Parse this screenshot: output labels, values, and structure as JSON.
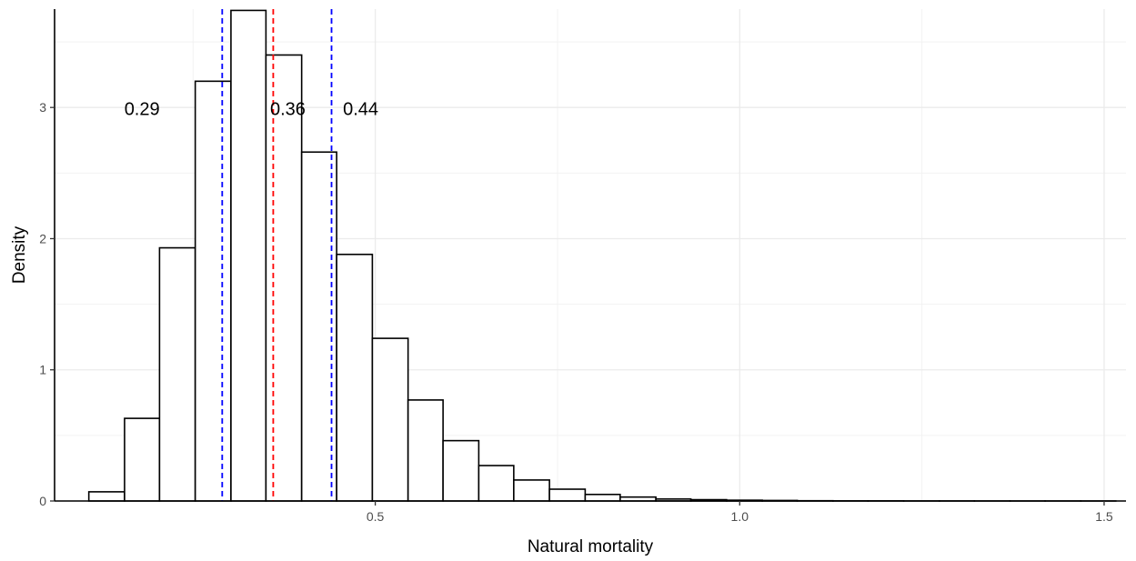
{
  "chart_data": {
    "type": "histogram",
    "xlabel": "Natural mortality",
    "ylabel": "Density",
    "xlim": [
      0.06,
      1.53
    ],
    "ylim": [
      0,
      3.75
    ],
    "xticks": [
      0.5,
      1.0,
      1.5
    ],
    "xtick_labels": [
      "0.5",
      "1.0",
      "1.5"
    ],
    "yticks": [
      0,
      1,
      2,
      3
    ],
    "ytick_labels": [
      "0",
      "1",
      "2",
      "3"
    ],
    "grid": true,
    "bin_width": 0.0486,
    "bins": [
      {
        "x0": 0.107,
        "x1": 0.156,
        "density": 0.07
      },
      {
        "x0": 0.156,
        "x1": 0.204,
        "density": 0.63
      },
      {
        "x0": 0.204,
        "x1": 0.253,
        "density": 1.93
      },
      {
        "x0": 0.253,
        "x1": 0.302,
        "density": 3.2
      },
      {
        "x0": 0.302,
        "x1": 0.35,
        "density": 3.74
      },
      {
        "x0": 0.35,
        "x1": 0.399,
        "density": 3.4
      },
      {
        "x0": 0.399,
        "x1": 0.447,
        "density": 2.66
      },
      {
        "x0": 0.447,
        "x1": 0.496,
        "density": 1.88
      },
      {
        "x0": 0.496,
        "x1": 0.545,
        "density": 1.24
      },
      {
        "x0": 0.545,
        "x1": 0.593,
        "density": 0.77
      },
      {
        "x0": 0.593,
        "x1": 0.642,
        "density": 0.46
      },
      {
        "x0": 0.642,
        "x1": 0.69,
        "density": 0.27
      },
      {
        "x0": 0.69,
        "x1": 0.739,
        "density": 0.16
      },
      {
        "x0": 0.739,
        "x1": 0.788,
        "density": 0.09
      },
      {
        "x0": 0.788,
        "x1": 0.836,
        "density": 0.05
      },
      {
        "x0": 0.836,
        "x1": 0.885,
        "density": 0.03
      },
      {
        "x0": 0.885,
        "x1": 0.933,
        "density": 0.015
      },
      {
        "x0": 0.933,
        "x1": 0.982,
        "density": 0.01
      },
      {
        "x0": 0.982,
        "x1": 1.031,
        "density": 0.006
      },
      {
        "x0": 1.031,
        "x1": 1.079,
        "density": 0.004
      },
      {
        "x0": 1.079,
        "x1": 1.128,
        "density": 0.002
      },
      {
        "x0": 1.128,
        "x1": 1.176,
        "density": 0.001
      },
      {
        "x0": 1.176,
        "x1": 1.225,
        "density": 0.001
      },
      {
        "x0": 1.225,
        "x1": 1.274,
        "density": 0.0005
      },
      {
        "x0": 1.274,
        "x1": 1.322,
        "density": 0.0005
      },
      {
        "x0": 1.322,
        "x1": 1.371,
        "density": 0.0003
      },
      {
        "x0": 1.371,
        "x1": 1.419,
        "density": 0.0002
      },
      {
        "x0": 1.419,
        "x1": 1.468,
        "density": 0.0002
      },
      {
        "x0": 1.468,
        "x1": 1.516,
        "density": 0.0001
      }
    ],
    "reference_lines": [
      {
        "name": "lower-quantile",
        "x": 0.29,
        "color": "#0000ff",
        "style": "dashed",
        "label": "0.29",
        "label_x": 0.18,
        "label_y": 2.99
      },
      {
        "name": "median",
        "x": 0.36,
        "color": "#ff0000",
        "style": "dashed",
        "label": "0.36",
        "label_x": 0.38,
        "label_y": 2.99
      },
      {
        "name": "upper-quantile",
        "x": 0.44,
        "color": "#0000ff",
        "style": "dashed",
        "label": "0.44",
        "label_x": 0.48,
        "label_y": 2.99
      }
    ]
  }
}
